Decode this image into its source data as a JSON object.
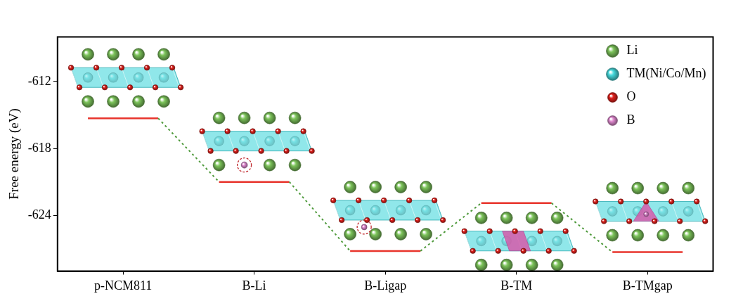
{
  "chart_data": {
    "type": "energy_level",
    "ylabel": "Free energy (eV)",
    "categories": [
      "p-NCM811",
      "B-Li",
      "B-Ligap",
      "B-TM",
      "B-TMgap"
    ],
    "values": [
      -615.3,
      -621.0,
      -627.2,
      -622.9,
      -627.3
    ],
    "color": "#e8342c",
    "ylim": [
      -629,
      -608
    ],
    "yticks": [
      -612,
      -618,
      -624
    ],
    "grid": false,
    "legend": "upper right",
    "legend_entries": [
      {
        "name": "Li",
        "color": "#7cc35a"
      },
      {
        "name": "TM(Ni/Co/Mn)",
        "color": "#46d9dc"
      },
      {
        "name": "O",
        "color": "#e0201c"
      },
      {
        "name": "B",
        "color": "#e08ad0"
      }
    ]
  }
}
